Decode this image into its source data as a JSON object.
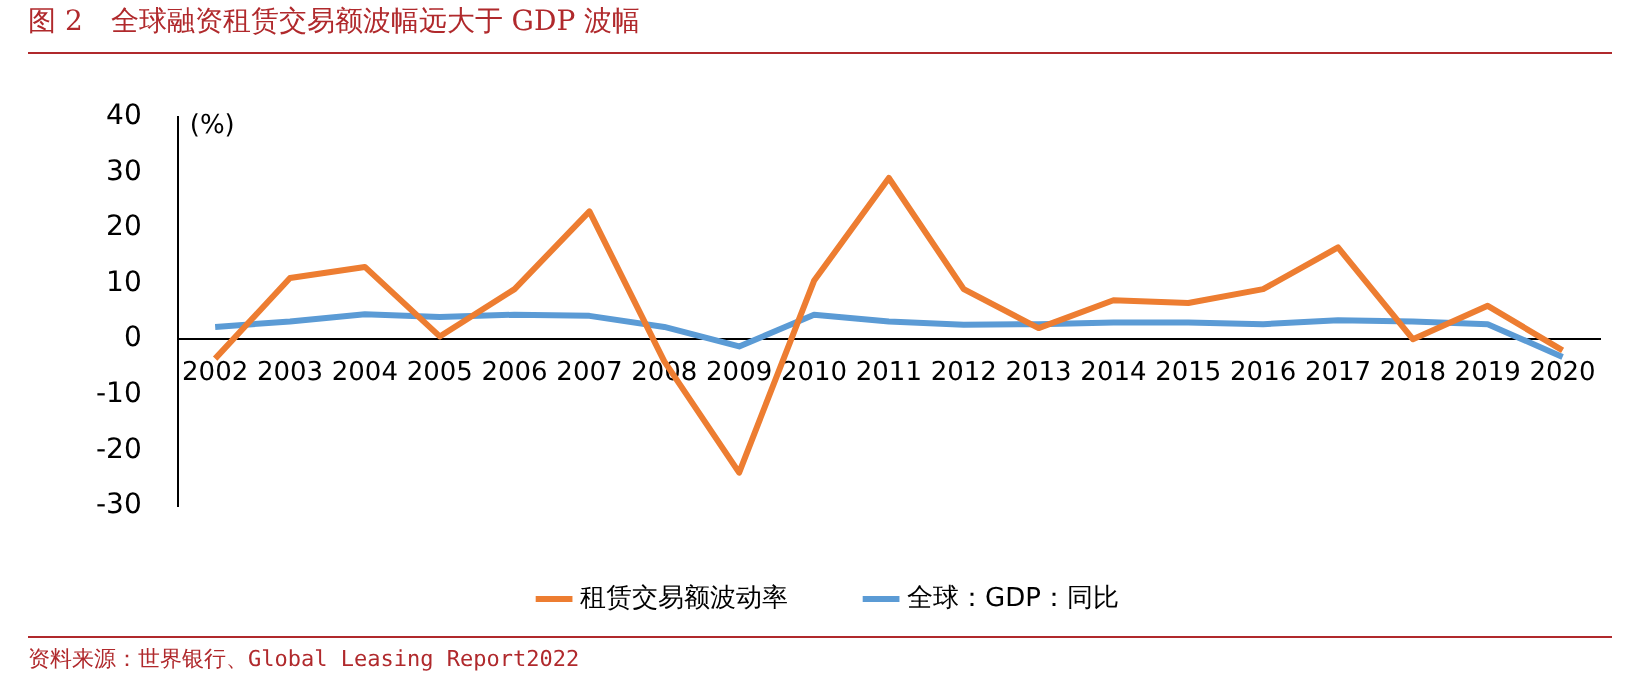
{
  "chart_data": {
    "type": "line",
    "title": "图 2　全球融资租赁交易额波幅远大于 GDP 波幅",
    "ylabel": "(%)",
    "categories": [
      "2002",
      "2003",
      "2004",
      "2005",
      "2006",
      "2007",
      "2008",
      "2009",
      "2010",
      "2011",
      "2012",
      "2013",
      "2014",
      "2015",
      "2016",
      "2017",
      "2018",
      "2019",
      "2020"
    ],
    "series": [
      {
        "name": "租赁交易额波动率",
        "color": "#ed7d31",
        "values": [
          -3.5,
          11,
          13,
          0.5,
          9,
          23,
          -4,
          -24,
          10.5,
          29,
          9,
          2,
          7,
          6.5,
          9,
          16.5,
          0,
          6,
          -2
        ]
      },
      {
        "name": "全球：GDP：同比",
        "color": "#5b9bd5",
        "values": [
          2.2,
          3.2,
          4.5,
          4,
          4.4,
          4.2,
          2.2,
          -1.3,
          4.4,
          3.2,
          2.6,
          2.7,
          3,
          3,
          2.7,
          3.4,
          3.2,
          2.7,
          -3.2
        ]
      }
    ],
    "ylim": [
      -30,
      40
    ],
    "yticks": [
      -30,
      -20,
      -10,
      0,
      10,
      20,
      30,
      40
    ],
    "grid": false,
    "legend": "bottom",
    "marker": "none",
    "line_style": "solid",
    "annotations": [
      "资料来源：世界银行、Global Leasing Report2022"
    ]
  }
}
